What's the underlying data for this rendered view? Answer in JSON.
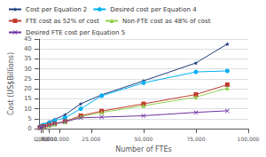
{
  "chart_data": {
    "type": "line",
    "x": [
      500,
      1000,
      1500,
      2500,
      5000,
      7500,
      12500,
      20000,
      30000,
      50000,
      75000,
      90000
    ],
    "xlabel": "Number of FTEs",
    "ylabel": "Cost (US$Billions)",
    "xlim": [
      0,
      100000
    ],
    "ylim": [
      0,
      45
    ],
    "xticks": [
      0,
      {
        "value": 1000,
        "label": "1,000"
      },
      {
        "value": 2000,
        "label": "2,000"
      },
      {
        "value": 5000,
        "label": "5,000"
      },
      {
        "value": 10000,
        "label": "10,000"
      },
      {
        "value": 25000,
        "label": "25,000"
      },
      {
        "value": 50000,
        "label": "50,000"
      },
      {
        "value": 75000,
        "label": "75,000"
      },
      {
        "value": 100000,
        "label": "100,000"
      }
    ],
    "yticks": [
      0,
      5,
      10,
      15,
      20,
      25,
      30,
      35,
      40,
      45
    ],
    "grid": true,
    "legend": "upper left",
    "series": [
      {
        "name": "Cost per Equation 2",
        "color": "#1F3D7A",
        "marker": "star",
        "values": [
          1.1,
          1.4,
          1.7,
          2.2,
          3.5,
          4.7,
          7.0,
          12.5,
          17.0,
          24.0,
          33.0,
          42.5
        ]
      },
      {
        "name": "Desired cost per Equation 4",
        "color": "#00B0F0",
        "marker": "circle",
        "values": [
          1.0,
          1.3,
          1.5,
          1.9,
          3.0,
          4.0,
          5.5,
          10.0,
          16.5,
          23.0,
          28.5,
          29.0
        ]
      },
      {
        "name": "FTE cost as 52% of cost",
        "color": "#C0392B",
        "marker": "square",
        "values": [
          0.57,
          0.73,
          0.88,
          1.14,
          1.82,
          2.44,
          3.64,
          6.5,
          8.84,
          12.48,
          17.16,
          22.1
        ]
      },
      {
        "name": "Non-FTE cost as 48% of cost",
        "color": "#92D050",
        "marker": "triangle",
        "values": [
          0.53,
          0.67,
          0.82,
          1.06,
          1.68,
          2.26,
          3.36,
          6.0,
          8.16,
          11.52,
          15.84,
          20.4
        ]
      },
      {
        "name": "Desired FTE cost per Equation 5",
        "color": "#7030A0",
        "marker": "x",
        "values": [
          0.35,
          0.55,
          0.72,
          1.0,
          1.8,
          2.5,
          3.5,
          5.5,
          5.8,
          6.5,
          8.2,
          9.0
        ]
      }
    ]
  }
}
